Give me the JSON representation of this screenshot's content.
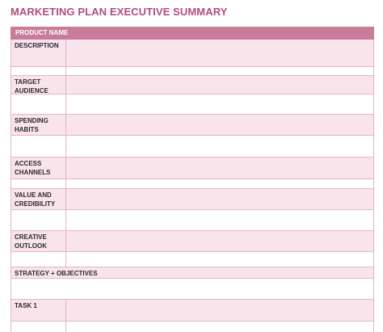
{
  "title": "MARKETING PLAN EXECUTIVE SUMMARY",
  "header": {
    "product_name_label": "PRODUCT NAME"
  },
  "sections": {
    "description": "DESCRIPTION",
    "target_audience": "TARGET\nAUDIENCE",
    "spending_habits": "SPENDING\nHABITS",
    "access_channels": "ACCESS\nCHANNELS",
    "value_credibility": "VALUE AND\nCREDIBILITY",
    "creative_outlook": "CREATIVE\nOUTLOOK",
    "strategy_objectives": "STRATEGY + OBJECTIVES",
    "task_1": "TASK 1"
  },
  "colors": {
    "title": "#b24d7c",
    "header_fill": "#c97c9a",
    "row_pink": "#f9e4ec",
    "row_white": "#ffffff",
    "grid_line": "#e3b7c7"
  }
}
